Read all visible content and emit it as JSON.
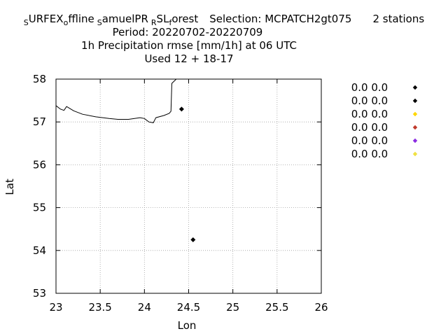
{
  "header": {
    "title_line1_parts": [
      "S",
      "URFEX",
      "o",
      "ffline",
      "S",
      "amuelPR",
      "R",
      "SL",
      "f",
      "orest"
    ],
    "selection": "Selection: MCPATCH2gt075",
    "stations": "2 stations",
    "period": "Period: 20220702-20220709",
    "subtitle": "1h Precipitation rmse [mm/1h] at  06 UTC",
    "used": "Used  12 + 18-17"
  },
  "chart_data": {
    "type": "scatter",
    "xlabel": "Lon",
    "ylabel": "Lat",
    "xlim": [
      23,
      26
    ],
    "ylim": [
      53,
      58
    ],
    "xticks": [
      23,
      23.5,
      24,
      24.5,
      25,
      25.5,
      26
    ],
    "xtick_labels": [
      "23",
      "23.5",
      "24",
      "24.5",
      "25",
      "25.5",
      "26"
    ],
    "yticks": [
      53,
      54,
      55,
      56,
      57,
      58
    ],
    "ytick_labels": [
      "53",
      "54",
      "55",
      "56",
      "57",
      "58"
    ],
    "grid": true,
    "legend_position": "right",
    "points": [
      {
        "lon": 24.42,
        "lat": 57.3,
        "color": "#000000"
      },
      {
        "lon": 24.55,
        "lat": 54.25,
        "color": "#000000"
      }
    ],
    "coastline": [
      [
        23.0,
        57.38
      ],
      [
        23.05,
        57.3
      ],
      [
        23.09,
        57.27
      ],
      [
        23.12,
        57.36
      ],
      [
        23.2,
        57.26
      ],
      [
        23.3,
        57.18
      ],
      [
        23.45,
        57.12
      ],
      [
        23.6,
        57.08
      ],
      [
        23.7,
        57.06
      ],
      [
        23.82,
        57.06
      ],
      [
        23.95,
        57.1
      ],
      [
        24.0,
        57.08
      ],
      [
        24.05,
        57.0
      ],
      [
        24.1,
        56.98
      ],
      [
        24.13,
        57.1
      ],
      [
        24.22,
        57.15
      ],
      [
        24.28,
        57.2
      ],
      [
        24.3,
        57.25
      ],
      [
        24.31,
        57.9
      ],
      [
        24.36,
        58.0
      ]
    ],
    "legend": [
      {
        "label": "0.0 0.0",
        "color": "#000000"
      },
      {
        "label": "0.0 0.0",
        "color": "#000000"
      },
      {
        "label": "0.0 0.0",
        "color": "#ffd700"
      },
      {
        "label": "0.0 0.0",
        "color": "#c0392b"
      },
      {
        "label": "0.0 0.0",
        "color": "#8a2be2"
      },
      {
        "label": "0.0 0.0",
        "color": "#f0e040"
      }
    ]
  }
}
